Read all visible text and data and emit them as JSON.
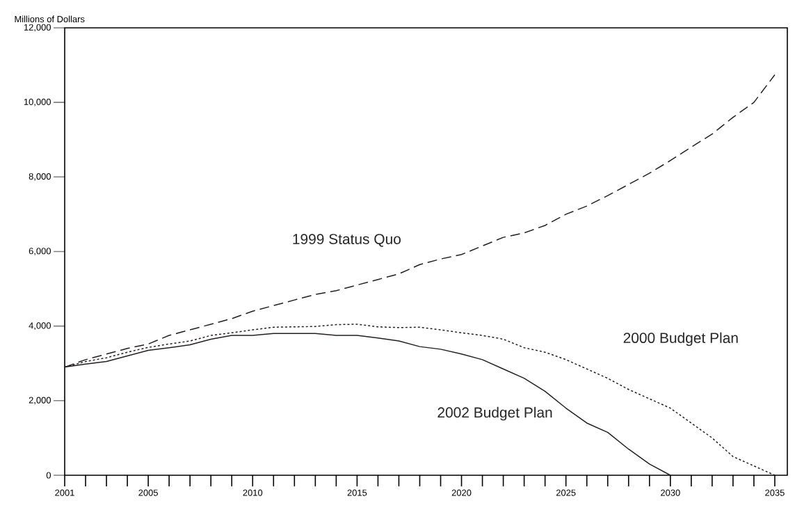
{
  "chart_data": {
    "type": "line",
    "ylabel": "Millions of Dollars",
    "x": [
      2001,
      2002,
      2003,
      2004,
      2005,
      2006,
      2007,
      2008,
      2009,
      2010,
      2011,
      2012,
      2013,
      2014,
      2015,
      2016,
      2017,
      2018,
      2019,
      2020,
      2021,
      2022,
      2023,
      2024,
      2025,
      2026,
      2027,
      2028,
      2029,
      2030,
      2031,
      2032,
      2033,
      2034,
      2035
    ],
    "series": [
      {
        "name": "1999 Status Quo",
        "color": "#231f20",
        "line_style": "dashed",
        "values": [
          2900,
          3100,
          3250,
          3400,
          3520,
          3750,
          3900,
          4050,
          4200,
          4400,
          4550,
          4700,
          4850,
          4950,
          5100,
          5250,
          5400,
          5650,
          5800,
          5920,
          6150,
          6380,
          6500,
          6700,
          7000,
          7220,
          7500,
          7800,
          8100,
          8440,
          8800,
          9150,
          9600,
          10000,
          10740
        ]
      },
      {
        "name": "2000 Budget Plan",
        "color": "#231f20",
        "line_style": "dotted",
        "values": [
          2900,
          3050,
          3150,
          3300,
          3430,
          3520,
          3600,
          3750,
          3820,
          3900,
          3970,
          3980,
          3990,
          4040,
          4050,
          3980,
          3960,
          3970,
          3900,
          3820,
          3750,
          3650,
          3420,
          3300,
          3100,
          2850,
          2600,
          2300,
          2050,
          1800,
          1400,
          1000,
          500,
          250,
          0
        ]
      },
      {
        "name": "2002 Budget Plan",
        "color": "#231f20",
        "line_style": "solid",
        "values": [
          2900,
          2980,
          3050,
          3200,
          3350,
          3420,
          3500,
          3650,
          3750,
          3750,
          3800,
          3800,
          3800,
          3750,
          3750,
          3680,
          3600,
          3450,
          3380,
          3250,
          3100,
          2850,
          2600,
          2250,
          1800,
          1400,
          1150,
          700,
          300,
          0,
          null,
          null,
          null,
          null,
          null
        ]
      }
    ],
    "xlim": [
      2001,
      2035.6
    ],
    "xticks": [
      2001,
      {
        "value": 2002,
        "label": null
      },
      {
        "value": 2003,
        "label": null
      },
      {
        "value": 2004,
        "label": null
      },
      2005,
      {
        "value": 2006,
        "label": null
      },
      {
        "value": 2007,
        "label": null
      },
      {
        "value": 2008,
        "label": null
      },
      {
        "value": 2009,
        "label": null
      },
      2010,
      {
        "value": 2011,
        "label": null
      },
      {
        "value": 2012,
        "label": null
      },
      {
        "value": 2013,
        "label": null
      },
      {
        "value": 2014,
        "label": null
      },
      2015,
      {
        "value": 2016,
        "label": null
      },
      {
        "value": 2017,
        "label": null
      },
      {
        "value": 2018,
        "label": null
      },
      {
        "value": 2019,
        "label": null
      },
      2020,
      {
        "value": 2021,
        "label": null
      },
      {
        "value": 2022,
        "label": null
      },
      {
        "value": 2023,
        "label": null
      },
      {
        "value": 2024,
        "label": null
      },
      2025,
      {
        "value": 2026,
        "label": null
      },
      {
        "value": 2027,
        "label": null
      },
      {
        "value": 2028,
        "label": null
      },
      {
        "value": 2029,
        "label": null
      },
      2030,
      {
        "value": 2031,
        "label": null
      },
      {
        "value": 2032,
        "label": null
      },
      {
        "value": 2033,
        "label": null
      },
      {
        "value": 2034,
        "label": null
      },
      2035
    ],
    "ylim": [
      0,
      12000
    ],
    "yticks": [
      0,
      {
        "value": 2000,
        "label": "2,000"
      },
      {
        "value": 4000,
        "label": "4,000"
      },
      {
        "value": 6000,
        "label": "6,000"
      },
      {
        "value": 8000,
        "label": "8,000"
      },
      {
        "value": 10000,
        "label": "10,000"
      },
      {
        "value": 12000,
        "label": "12,000"
      }
    ],
    "grid": false,
    "legend": false,
    "marker": "none"
  }
}
